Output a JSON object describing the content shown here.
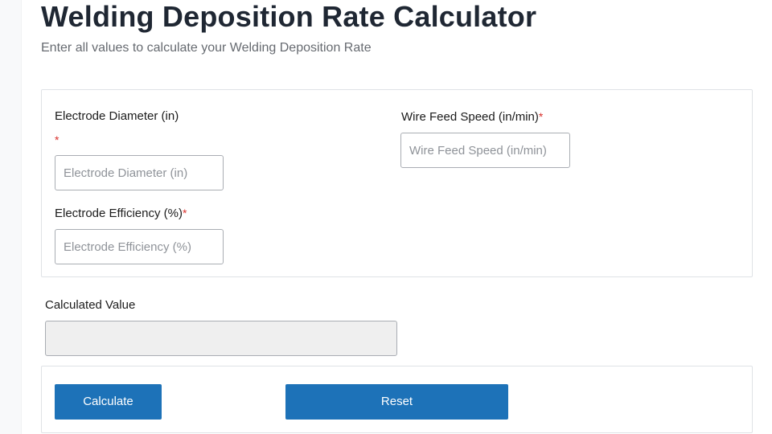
{
  "header": {
    "title": "Welding Deposition Rate Calculator",
    "subtitle": "Enter all values to calculate your Welding Deposition Rate"
  },
  "form": {
    "required_mark": "*",
    "electrode_diameter": {
      "label": "Electrode Diameter (in)",
      "placeholder": "Electrode Diameter (in)",
      "value": ""
    },
    "wire_feed_speed": {
      "label": "Wire Feed Speed (in/min)",
      "placeholder": "Wire Feed Speed (in/min)",
      "value": ""
    },
    "electrode_efficiency": {
      "label": "Electrode Efficiency (%)",
      "placeholder": "Electrode Efficiency (%)",
      "value": ""
    }
  },
  "result": {
    "label": "Calculated Value",
    "value": ""
  },
  "actions": {
    "calculate_label": "Calculate",
    "reset_label": "Reset"
  },
  "colors": {
    "button_bg": "#1d72b8",
    "required": "#d9302c",
    "title": "#1f2733"
  }
}
